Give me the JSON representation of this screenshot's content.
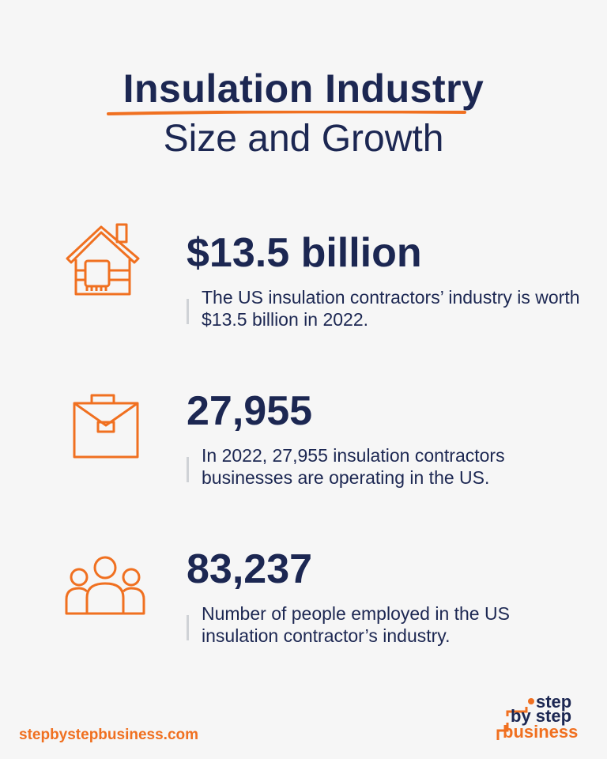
{
  "title": "Insulation Industry",
  "subtitle": "Size and Growth",
  "accent_color": "#f07020",
  "text_color": "#1c2752",
  "stats": [
    {
      "icon": "house-icon",
      "value": "$13.5 billion",
      "description": "The US insulation contractors’ industry is worth $13.5 billion in 2022."
    },
    {
      "icon": "briefcase-icon",
      "value": "27,955",
      "description": "In 2022, 27,955 insulation contractors businesses are operating in the US."
    },
    {
      "icon": "people-icon",
      "value": "83,237",
      "description": "Number of people employed in the US insulation contractor’s industry."
    }
  ],
  "footer": {
    "url": "stepbystepbusiness.com",
    "logo": {
      "line1": "step",
      "line2": "by step",
      "line3": "business"
    }
  }
}
